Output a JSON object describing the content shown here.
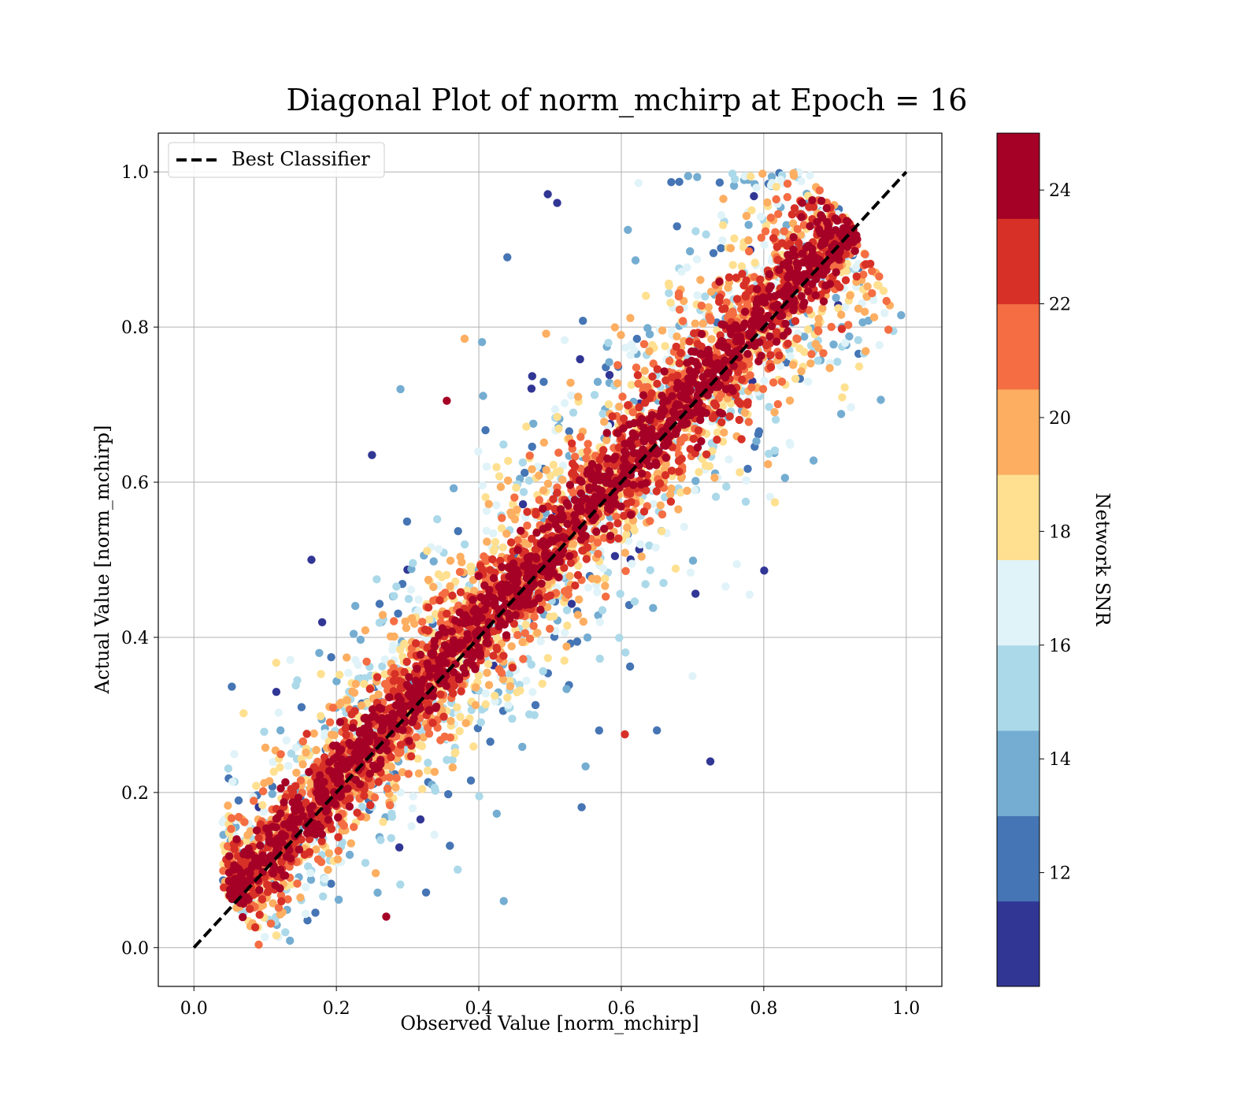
{
  "chart_data": {
    "type": "scatter",
    "title": "Diagonal Plot of norm_mchirp at Epoch = 16",
    "xlabel": "Observed Value [norm_mchirp]",
    "ylabel": "Actual Value [norm_mchirp]",
    "xlim": [
      -0.05,
      1.05
    ],
    "ylim": [
      -0.05,
      1.05
    ],
    "xticks": [
      "0.0",
      "0.2",
      "0.4",
      "0.6",
      "0.8",
      "1.0"
    ],
    "yticks": [
      "0.0",
      "0.2",
      "0.4",
      "0.6",
      "0.8",
      "1.0"
    ],
    "grid": true,
    "legend": {
      "placement": "top-left",
      "entries": [
        "Best Classifier"
      ]
    },
    "reference_line": {
      "name": "Best Classifier",
      "x": [
        0.0,
        1.0
      ],
      "y": [
        0.0,
        1.0
      ],
      "style": "dashed",
      "color": "#000000"
    },
    "colorbar": {
      "label": "Network SNR",
      "range": [
        10,
        25
      ],
      "ticks": [
        "12",
        "14",
        "16",
        "18",
        "20",
        "22",
        "24"
      ],
      "colormap": "RdYlBu_r",
      "colors": [
        "#313695",
        "#4575b4",
        "#74add1",
        "#abd9e9",
        "#e0f3f8",
        "#fee090",
        "#fdae61",
        "#f46d43",
        "#d73027",
        "#a50026"
      ]
    },
    "series_summary": {
      "trend": "points scatter around y = x",
      "x_range": [
        0.04,
        0.93
      ],
      "y_range": [
        0.0,
        1.0
      ],
      "spread_increases_with_lower_snr": true
    },
    "outliers": [
      {
        "x": 0.51,
        "y": 0.96,
        "snr": 11
      },
      {
        "x": 0.44,
        "y": 0.89,
        "snr": 12
      },
      {
        "x": 0.29,
        "y": 0.72,
        "snr": 13
      },
      {
        "x": 0.165,
        "y": 0.5,
        "snr": 10.5
      },
      {
        "x": 0.355,
        "y": 0.705,
        "snr": 24
      },
      {
        "x": 0.38,
        "y": 0.785,
        "snr": 19.5
      },
      {
        "x": 0.25,
        "y": 0.635,
        "snr": 11
      },
      {
        "x": 0.725,
        "y": 0.24,
        "snr": 11
      },
      {
        "x": 0.435,
        "y": 0.06,
        "snr": 14
      },
      {
        "x": 0.27,
        "y": 0.04,
        "snr": 24
      },
      {
        "x": 0.605,
        "y": 0.275,
        "snr": 22
      },
      {
        "x": 0.65,
        "y": 0.28,
        "snr": 12
      },
      {
        "x": 0.78,
        "y": 0.455,
        "snr": 16
      },
      {
        "x": 0.7,
        "y": 0.35,
        "snr": 16
      }
    ]
  }
}
